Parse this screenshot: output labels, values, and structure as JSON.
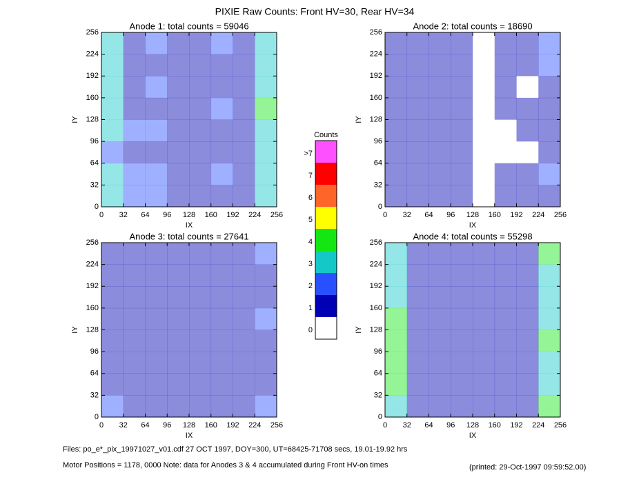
{
  "chart_data": {
    "type": "heatmap",
    "title": "PIXIE Raw Counts:  Front HV=30, Rear HV=34",
    "xlabel": "IX",
    "ylabel": "IY",
    "xlim": [
      0,
      256
    ],
    "ylim": [
      0,
      256
    ],
    "xticks": [
      0,
      32,
      64,
      96,
      128,
      160,
      192,
      224,
      256
    ],
    "yticks": [
      0,
      32,
      64,
      96,
      128,
      160,
      192,
      224,
      256
    ],
    "panels": [
      {
        "title": "Anode 1: total counts = 59046",
        "z": [
          [
            3,
            1,
            2,
            1,
            1,
            2,
            1,
            3
          ],
          [
            3,
            1,
            1,
            1,
            1,
            1,
            1,
            3
          ],
          [
            3,
            1,
            2,
            1,
            1,
            1,
            1,
            3
          ],
          [
            3,
            1,
            1,
            1,
            1,
            2,
            1,
            4
          ],
          [
            3,
            2,
            2,
            1,
            1,
            1,
            1,
            3
          ],
          [
            2,
            1,
            1,
            1,
            1,
            1,
            1,
            3
          ],
          [
            3,
            2,
            2,
            1,
            1,
            2,
            1,
            3
          ],
          [
            3,
            2,
            2,
            1,
            1,
            1,
            1,
            3
          ]
        ]
      },
      {
        "title": "Anode 2: total counts = 18690",
        "z": [
          [
            1,
            1,
            1,
            1,
            0,
            1,
            1,
            2
          ],
          [
            1,
            1,
            1,
            1,
            0,
            1,
            1,
            2
          ],
          [
            1,
            1,
            1,
            1,
            0,
            1,
            0,
            1
          ],
          [
            1,
            1,
            1,
            1,
            0,
            1,
            1,
            1
          ],
          [
            1,
            1,
            1,
            1,
            0,
            0,
            1,
            1
          ],
          [
            1,
            1,
            1,
            1,
            0,
            0,
            0,
            1
          ],
          [
            1,
            1,
            1,
            1,
            0,
            1,
            1,
            2
          ],
          [
            1,
            1,
            1,
            1,
            0,
            1,
            1,
            1
          ]
        ]
      },
      {
        "title": "Anode 3: total counts = 27641",
        "z": [
          [
            1,
            1,
            1,
            1,
            1,
            1,
            1,
            2
          ],
          [
            1,
            1,
            1,
            1,
            1,
            1,
            1,
            1
          ],
          [
            1,
            1,
            1,
            1,
            1,
            1,
            1,
            1
          ],
          [
            1,
            1,
            1,
            1,
            1,
            1,
            1,
            2
          ],
          [
            1,
            1,
            1,
            1,
            1,
            1,
            1,
            1
          ],
          [
            1,
            1,
            1,
            1,
            1,
            1,
            1,
            1
          ],
          [
            1,
            1,
            1,
            1,
            1,
            1,
            1,
            1
          ],
          [
            2,
            1,
            1,
            1,
            1,
            1,
            1,
            2
          ]
        ]
      },
      {
        "title": "Anode 4: total counts = 55298",
        "z": [
          [
            3,
            1,
            1,
            1,
            1,
            1,
            1,
            4
          ],
          [
            3,
            1,
            1,
            1,
            1,
            1,
            1,
            3
          ],
          [
            3,
            1,
            1,
            1,
            1,
            1,
            1,
            3
          ],
          [
            4,
            1,
            1,
            1,
            1,
            1,
            1,
            3
          ],
          [
            4,
            1,
            1,
            1,
            1,
            1,
            1,
            4
          ],
          [
            4,
            1,
            1,
            1,
            1,
            1,
            1,
            3
          ],
          [
            4,
            1,
            1,
            1,
            1,
            1,
            1,
            3
          ],
          [
            3,
            1,
            1,
            1,
            1,
            1,
            1,
            4
          ]
        ]
      }
    ],
    "colorbar": {
      "title": "Counts",
      "levels": [
        0,
        1,
        2,
        3,
        4,
        5,
        6,
        7,
        {
          "value": 8,
          "label": ">7"
        }
      ],
      "colors": [
        "#ffffff",
        "#0000b4",
        "#2850ff",
        "#14c8c8",
        "#14e614",
        "#ffff00",
        "#ff6428",
        "#ff0000",
        "#ff50ff"
      ]
    }
  },
  "footer": {
    "files": "Files: po_e*_pix_19971027_v01.cdf    27 OCT 1997, DOY=300, UT=68425-71708 secs, 19.01-19.92 hrs",
    "motor": "Motor Positions = 1178, 0000   Note: data for Anodes 3 & 4 accumulated during Front HV-on times",
    "printed": "(printed: 29-Oct-1997 09:59:52.00)"
  }
}
